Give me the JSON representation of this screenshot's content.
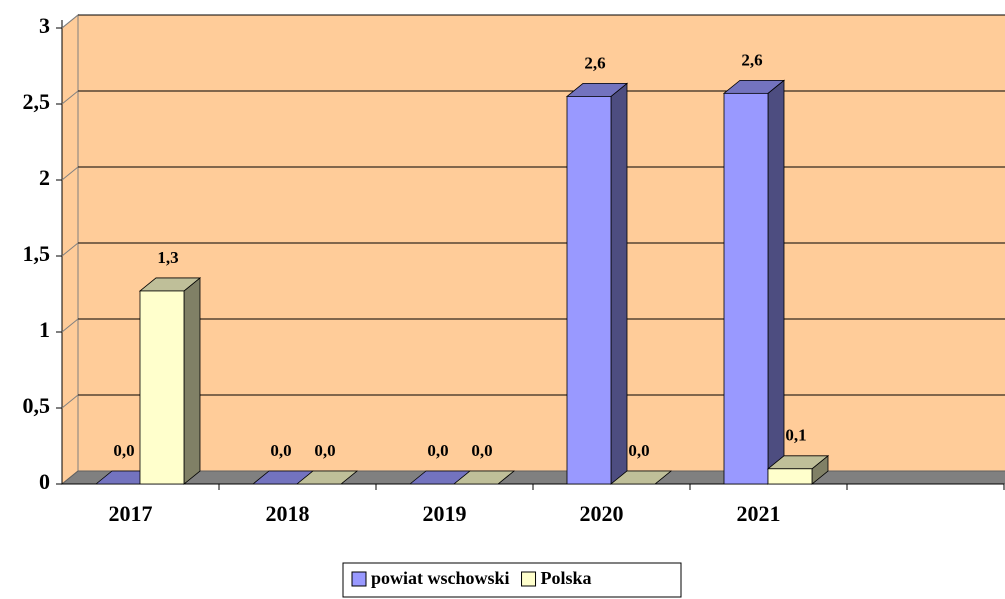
{
  "chart_data": {
    "type": "bar3d",
    "categories": [
      "2017",
      "2018",
      "2019",
      "2020",
      "2021",
      null
    ],
    "series": [
      {
        "name": "powiat wschowski",
        "color": "#9999ff",
        "values": [
          0,
          0,
          0,
          2.55,
          2.57,
          null
        ],
        "value_labels": [
          "0,0",
          "0,0",
          "0,0",
          "2,6",
          "2,6",
          null
        ]
      },
      {
        "name": "Polska",
        "color": "#ffffcc",
        "values": [
          1.27,
          0,
          0,
          0,
          0.1,
          null
        ],
        "value_labels": [
          "1,3",
          "0,0",
          "0,0",
          "0,0",
          "0,1",
          null
        ]
      }
    ],
    "ylim": [
      0,
      3
    ],
    "yticks": [
      0,
      {
        "value": 0.5,
        "label": "0,5"
      },
      1,
      {
        "value": 1.5,
        "label": "1,5"
      },
      2,
      {
        "value": 2.5,
        "label": "2,5"
      },
      3
    ],
    "grid": true,
    "legend": "bottom"
  }
}
